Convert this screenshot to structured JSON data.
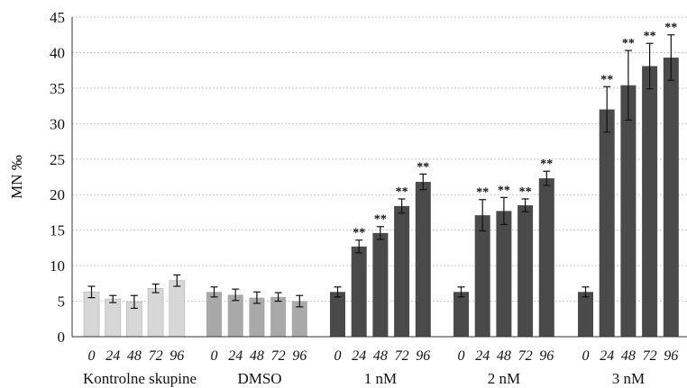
{
  "chart_data": {
    "type": "bar",
    "title": "",
    "xlabel": "",
    "ylabel": "MN ‰",
    "ylim": [
      0,
      45
    ],
    "y_ticks": [
      0,
      5,
      10,
      15,
      20,
      25,
      30,
      35,
      40,
      45
    ],
    "grid": true,
    "legend": "none",
    "groups": [
      {
        "name": "Kontrolne skupine",
        "color": "#d7d7d7",
        "bars": [
          {
            "x": "0",
            "value": 6.3,
            "err": 0.8,
            "sig": ""
          },
          {
            "x": "24",
            "value": 5.3,
            "err": 0.5,
            "sig": ""
          },
          {
            "x": "48",
            "value": 4.9,
            "err": 0.9,
            "sig": ""
          },
          {
            "x": "72",
            "value": 6.8,
            "err": 0.6,
            "sig": ""
          },
          {
            "x": "96",
            "value": 7.9,
            "err": 0.8,
            "sig": ""
          }
        ]
      },
      {
        "name": "DMSO",
        "color": "#a9a9a9",
        "bars": [
          {
            "x": "0",
            "value": 6.3,
            "err": 0.7,
            "sig": ""
          },
          {
            "x": "24",
            "value": 5.9,
            "err": 0.8,
            "sig": ""
          },
          {
            "x": "48",
            "value": 5.5,
            "err": 0.8,
            "sig": ""
          },
          {
            "x": "72",
            "value": 5.6,
            "err": 0.6,
            "sig": ""
          },
          {
            "x": "96",
            "value": 5.0,
            "err": 0.8,
            "sig": ""
          }
        ]
      },
      {
        "name": "1 nM",
        "color": "#4a4a4a",
        "bars": [
          {
            "x": "0",
            "value": 6.3,
            "err": 0.7,
            "sig": ""
          },
          {
            "x": "24",
            "value": 12.7,
            "err": 0.9,
            "sig": "**"
          },
          {
            "x": "48",
            "value": 14.6,
            "err": 0.9,
            "sig": "**"
          },
          {
            "x": "72",
            "value": 18.4,
            "err": 1.0,
            "sig": "**"
          },
          {
            "x": "96",
            "value": 21.8,
            "err": 1.1,
            "sig": "**"
          }
        ]
      },
      {
        "name": "2 nM",
        "color": "#4a4a4a",
        "bars": [
          {
            "x": "0",
            "value": 6.3,
            "err": 0.7,
            "sig": ""
          },
          {
            "x": "24",
            "value": 17.1,
            "err": 2.2,
            "sig": "**"
          },
          {
            "x": "48",
            "value": 17.7,
            "err": 1.9,
            "sig": "**"
          },
          {
            "x": "72",
            "value": 18.5,
            "err": 0.9,
            "sig": "**"
          },
          {
            "x": "96",
            "value": 22.3,
            "err": 1.0,
            "sig": "**"
          }
        ]
      },
      {
        "name": "3 nM",
        "color": "#4a4a4a",
        "bars": [
          {
            "x": "0",
            "value": 6.3,
            "err": 0.7,
            "sig": ""
          },
          {
            "x": "24",
            "value": 32.0,
            "err": 3.2,
            "sig": "**"
          },
          {
            "x": "48",
            "value": 35.4,
            "err": 4.9,
            "sig": "**"
          },
          {
            "x": "72",
            "value": 38.1,
            "err": 3.2,
            "sig": "**"
          },
          {
            "x": "96",
            "value": 39.3,
            "err": 3.2,
            "sig": "**"
          }
        ]
      }
    ]
  }
}
